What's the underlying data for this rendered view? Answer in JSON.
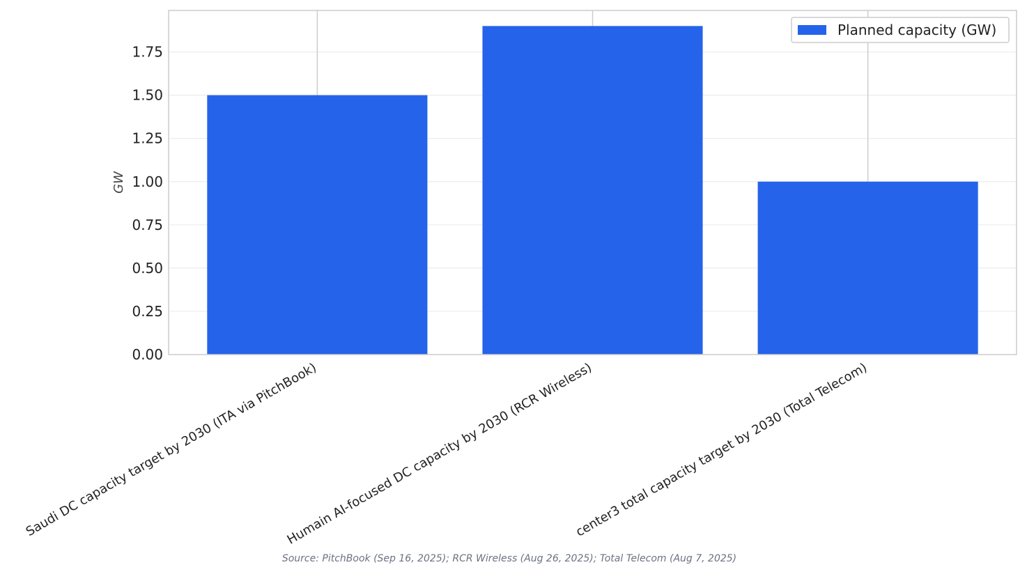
{
  "chart_data": {
    "type": "bar",
    "categories": [
      "Saudi DC capacity target by 2030 (ITA via PitchBook)",
      "Humain AI-focused DC capacity by 2030 (RCR Wireless)",
      "center3 total capacity target by 2030 (Total Telecom)"
    ],
    "series": [
      {
        "name": "Planned capacity (GW)",
        "values": [
          1.5,
          1.9,
          1.0
        ],
        "color": "#2563eb"
      }
    ],
    "ylabel": "GW",
    "ylim": [
      0,
      1.99
    ],
    "yticks": [
      "0.00",
      "0.25",
      "0.50",
      "0.75",
      "1.00",
      "1.25",
      "1.50",
      "1.75"
    ],
    "grid": "horizontal",
    "legend_position": "top-right",
    "source": "Source: PitchBook (Sep 16, 2025); RCR Wireless (Aug 26, 2025); Total Telecom (Aug 7, 2025)"
  }
}
